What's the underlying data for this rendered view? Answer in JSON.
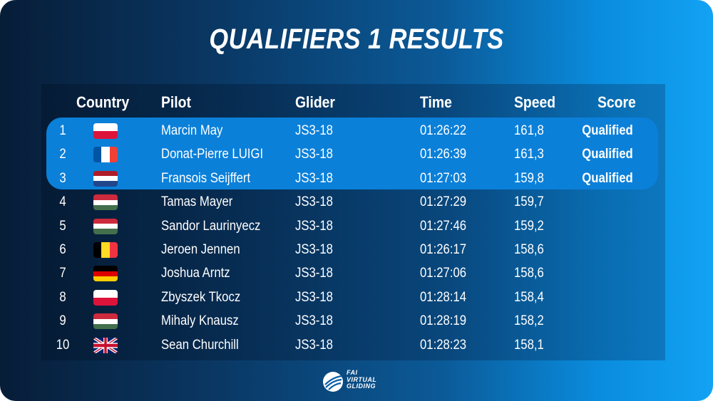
{
  "title": "QUALIFIERS 1 RESULTS",
  "headers": {
    "country": "Country",
    "pilot": "Pilot",
    "glider": "Glider",
    "time": "Time",
    "speed": "Speed",
    "score": "Score"
  },
  "rows": [
    {
      "rank": "1",
      "flag": "poland-flag-icon",
      "pilot": "Marcin May",
      "glider": "JS3-18",
      "time": "01:26:22",
      "speed": "161,8",
      "score": "Qualified"
    },
    {
      "rank": "2",
      "flag": "france-flag-icon",
      "pilot": "Donat-Pierre LUIGI",
      "glider": "JS3-18",
      "time": "01:26:39",
      "speed": "161,3",
      "score": "Qualified"
    },
    {
      "rank": "3",
      "flag": "netherlands-flag-icon",
      "pilot": "Fransois Seijffert",
      "glider": "JS3-18",
      "time": "01:27:03",
      "speed": "159,8",
      "score": "Qualified"
    },
    {
      "rank": "4",
      "flag": "hungary-flag-icon",
      "pilot": "Tamas Mayer",
      "glider": "JS3-18",
      "time": "01:27:29",
      "speed": "159,7",
      "score": ""
    },
    {
      "rank": "5",
      "flag": "hungary-flag-icon",
      "pilot": "Sandor Laurinyecz",
      "glider": "JS3-18",
      "time": "01:27:46",
      "speed": "159,2",
      "score": ""
    },
    {
      "rank": "6",
      "flag": "belgium-flag-icon",
      "pilot": "Jeroen Jennen",
      "glider": "JS3-18",
      "time": "01:26:17",
      "speed": "158,6",
      "score": ""
    },
    {
      "rank": "7",
      "flag": "germany-flag-icon",
      "pilot": "Joshua Arntz",
      "glider": "JS3-18",
      "time": "01:27:06",
      "speed": "158,6",
      "score": ""
    },
    {
      "rank": "8",
      "flag": "poland-flag-icon",
      "pilot": "Zbyszek Tkocz",
      "glider": "JS3-18",
      "time": "01:28:14",
      "speed": "158,4",
      "score": ""
    },
    {
      "rank": "9",
      "flag": "hungary-flag-icon",
      "pilot": "Mihaly Knausz",
      "glider": "JS3-18",
      "time": "01:28:19",
      "speed": "158,2",
      "score": ""
    },
    {
      "rank": "10",
      "flag": "uk-flag-icon",
      "pilot": "Sean Churchill",
      "glider": "JS3-18",
      "time": "01:28:23",
      "speed": "158,1",
      "score": ""
    }
  ],
  "logo": {
    "line1": "FAI",
    "line2": "VIRTUAL",
    "line3": "GLIDING",
    "icon": "fai-glider-logo-icon"
  },
  "colors": {
    "highlight": "#0b80d9",
    "poland_red": "#dc143c",
    "france_blue": "#0055a4",
    "france_red": "#ef4135",
    "netherlands_red": "#ae1c28",
    "netherlands_blue": "#21468b",
    "hungary_red": "#cd2a3e",
    "hungary_green": "#436f4d",
    "belgium_yellow": "#fdda24",
    "belgium_red": "#ef3340",
    "germany_red": "#dd0000",
    "germany_gold": "#ffce00",
    "uk_blue": "#012169",
    "uk_red": "#c8102e"
  }
}
